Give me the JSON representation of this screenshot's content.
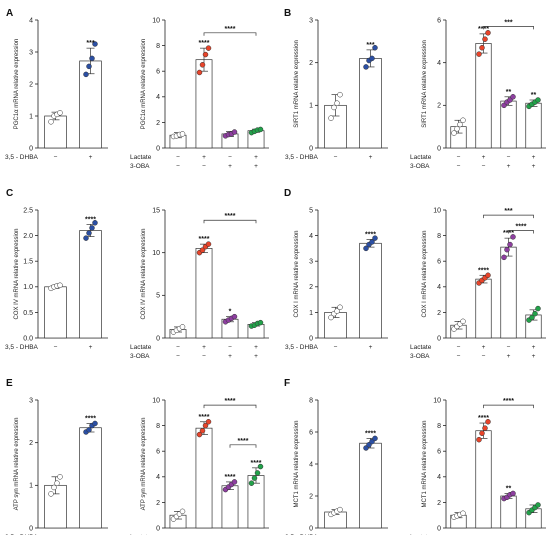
{
  "colors": {
    "control": "#ffffff",
    "dhba": "#2b4fa3",
    "lactate": "#e8442a",
    "oba": "#8e3fa0",
    "combo": "#22a24a"
  },
  "chart_data": [
    {
      "panel": "A",
      "type": "scatter-bar",
      "ylabel": "PGC1α mRNA relative expression",
      "ylim": [
        0,
        4
      ],
      "ticks": [
        "0",
        "1",
        "2",
        "3",
        "4"
      ],
      "cond_rows": [
        {
          "label": "3,5 - DHBA",
          "marks": [
            "−",
            "+"
          ]
        }
      ],
      "groups": [
        {
          "color": "control",
          "mean": 1.0,
          "sd": 0.12,
          "points": [
            0.82,
            1.0,
            1.05,
            1.1
          ]
        },
        {
          "color": "dhba",
          "mean": 2.72,
          "sd": 0.4,
          "points": [
            2.3,
            2.55,
            2.8,
            3.25
          ],
          "sig": "***"
        }
      ],
      "brackets": []
    },
    {
      "panel": "A",
      "type": "scatter-bar",
      "ylabel": "PGC1α mRNA relative expression",
      "ylim": [
        0,
        10
      ],
      "ticks": [
        "0",
        "2",
        "4",
        "6",
        "8",
        "10"
      ],
      "cond_rows": [
        {
          "label": "Lactate",
          "marks": [
            "−",
            "+",
            "−",
            "+"
          ]
        },
        {
          "label": "3-OBA",
          "marks": [
            "−",
            "−",
            "+",
            "+"
          ]
        }
      ],
      "groups": [
        {
          "color": "control",
          "mean": 1.0,
          "sd": 0.2,
          "points": [
            0.9,
            0.95,
            1.05,
            1.1
          ]
        },
        {
          "color": "lactate",
          "mean": 6.9,
          "sd": 0.9,
          "points": [
            5.9,
            6.5,
            7.3,
            7.8
          ],
          "sig": "****"
        },
        {
          "color": "oba",
          "mean": 1.1,
          "sd": 0.2,
          "points": [
            0.95,
            1.05,
            1.1,
            1.25
          ]
        },
        {
          "color": "combo",
          "mean": 1.35,
          "sd": 0.12,
          "points": [
            1.2,
            1.3,
            1.4,
            1.45
          ]
        }
      ],
      "brackets": [
        {
          "from": 1,
          "to": 3,
          "y": 9.0,
          "label": "****"
        }
      ]
    },
    {
      "panel": "B",
      "type": "scatter-bar",
      "ylabel": "SIRT1 mRNA relative expression",
      "ylim": [
        0,
        3
      ],
      "ticks": [
        "0",
        "1",
        "2",
        "3"
      ],
      "cond_rows": [
        {
          "label": "3,5 - DHBA",
          "marks": [
            "−",
            "+"
          ]
        }
      ],
      "groups": [
        {
          "color": "control",
          "mean": 1.0,
          "sd": 0.25,
          "points": [
            0.7,
            0.95,
            1.05,
            1.25
          ]
        },
        {
          "color": "dhba",
          "mean": 2.1,
          "sd": 0.2,
          "points": [
            1.9,
            2.05,
            2.1,
            2.35
          ],
          "sig": "***"
        }
      ],
      "brackets": []
    },
    {
      "panel": "B",
      "type": "scatter-bar",
      "ylabel": "SIRT1 mRNA relative expression",
      "ylim": [
        0,
        6
      ],
      "ticks": [
        "0",
        "2",
        "4",
        "6"
      ],
      "cond_rows": [
        {
          "label": "Lactate",
          "marks": [
            "−",
            "+",
            "−",
            "+"
          ]
        },
        {
          "label": "3-OBA",
          "marks": [
            "−",
            "−",
            "+",
            "+"
          ]
        }
      ],
      "groups": [
        {
          "color": "control",
          "mean": 1.0,
          "sd": 0.3,
          "points": [
            0.7,
            0.9,
            1.1,
            1.3
          ]
        },
        {
          "color": "lactate",
          "mean": 4.9,
          "sd": 0.45,
          "points": [
            4.4,
            4.7,
            5.1,
            5.4
          ],
          "sig": "****"
        },
        {
          "color": "oba",
          "mean": 2.2,
          "sd": 0.2,
          "points": [
            2.0,
            2.15,
            2.25,
            2.4
          ],
          "sig": "**"
        },
        {
          "color": "combo",
          "mean": 2.1,
          "sd": 0.15,
          "points": [
            1.95,
            2.05,
            2.15,
            2.25
          ],
          "sig": "**"
        }
      ],
      "brackets": [
        {
          "from": 1,
          "to": 3,
          "y": 5.7,
          "label": "***"
        }
      ]
    },
    {
      "panel": "C",
      "type": "scatter-bar",
      "ylabel": "COX IV mRNA relative expression",
      "ylim": [
        0,
        2.5
      ],
      "ticks": [
        "0.0",
        "0.5",
        "1.0",
        "1.5",
        "2.0",
        "2.5"
      ],
      "cond_rows": [
        {
          "label": "3,5 - DHBA",
          "marks": [
            "−",
            "+"
          ]
        }
      ],
      "groups": [
        {
          "color": "control",
          "mean": 1.0,
          "sd": 0.03,
          "points": [
            0.97,
            1.0,
            1.02,
            1.03
          ]
        },
        {
          "color": "dhba",
          "mean": 2.1,
          "sd": 0.12,
          "points": [
            1.95,
            2.05,
            2.15,
            2.25
          ],
          "sig": "****"
        }
      ],
      "brackets": []
    },
    {
      "panel": "C",
      "type": "scatter-bar",
      "ylabel": "COX IV mRNA relative expression",
      "ylim": [
        0,
        15
      ],
      "ticks": [
        "0",
        "5",
        "10",
        "15"
      ],
      "cond_rows": [
        {
          "label": "Lactate",
          "marks": [
            "−",
            "+",
            "−",
            "+"
          ]
        },
        {
          "label": "3-OBA",
          "marks": [
            "−",
            "−",
            "+",
            "+"
          ]
        }
      ],
      "groups": [
        {
          "color": "control",
          "mean": 1.0,
          "sd": 0.3,
          "points": [
            0.7,
            0.9,
            1.1,
            1.3
          ]
        },
        {
          "color": "lactate",
          "mean": 10.5,
          "sd": 0.5,
          "points": [
            10.0,
            10.3,
            10.7,
            11.0
          ],
          "sig": "****"
        },
        {
          "color": "oba",
          "mean": 2.2,
          "sd": 0.3,
          "points": [
            1.9,
            2.1,
            2.3,
            2.5
          ],
          "sig": "*"
        },
        {
          "color": "combo",
          "mean": 1.6,
          "sd": 0.2,
          "points": [
            1.4,
            1.5,
            1.7,
            1.8
          ]
        }
      ],
      "brackets": [
        {
          "from": 1,
          "to": 3,
          "y": 13.8,
          "label": "****"
        }
      ]
    },
    {
      "panel": "D",
      "type": "scatter-bar",
      "ylabel": "COX I mRNA relative expression",
      "ylim": [
        0,
        5
      ],
      "ticks": [
        "0",
        "1",
        "2",
        "3",
        "4",
        "5"
      ],
      "cond_rows": [
        {
          "label": "3,5 - DHBA",
          "marks": [
            "−",
            "+"
          ]
        }
      ],
      "groups": [
        {
          "color": "control",
          "mean": 1.0,
          "sd": 0.2,
          "points": [
            0.8,
            0.95,
            1.05,
            1.2
          ]
        },
        {
          "color": "dhba",
          "mean": 3.7,
          "sd": 0.15,
          "points": [
            3.5,
            3.65,
            3.75,
            3.9
          ],
          "sig": "****"
        }
      ],
      "brackets": []
    },
    {
      "panel": "D",
      "type": "scatter-bar",
      "ylabel": "COX I mRNA relative expression",
      "ylim": [
        0,
        10
      ],
      "ticks": [
        "0",
        "2",
        "4",
        "6",
        "8",
        "10"
      ],
      "cond_rows": [
        {
          "label": "Lactate",
          "marks": [
            "−",
            "+",
            "−",
            "+"
          ]
        },
        {
          "label": "3-OBA",
          "marks": [
            "−",
            "−",
            "+",
            "+"
          ]
        }
      ],
      "groups": [
        {
          "color": "control",
          "mean": 1.0,
          "sd": 0.3,
          "points": [
            0.7,
            0.9,
            1.1,
            1.3
          ]
        },
        {
          "color": "lactate",
          "mean": 4.6,
          "sd": 0.3,
          "points": [
            4.3,
            4.5,
            4.7,
            4.9
          ],
          "sig": "****"
        },
        {
          "color": "oba",
          "mean": 7.1,
          "sd": 0.7,
          "points": [
            6.3,
            6.9,
            7.3,
            7.9
          ],
          "sig": "****"
        },
        {
          "color": "combo",
          "mean": 1.8,
          "sd": 0.4,
          "points": [
            1.4,
            1.6,
            1.9,
            2.3
          ]
        }
      ],
      "brackets": [
        {
          "from": 1,
          "to": 3,
          "y": 9.6,
          "label": "***"
        },
        {
          "from": 2,
          "to": 3,
          "y": 8.4,
          "label": "****"
        }
      ]
    },
    {
      "panel": "E",
      "type": "scatter-bar",
      "ylabel": "ATP syn mRNA relative expression",
      "ylim": [
        0,
        3
      ],
      "ticks": [
        "0",
        "1",
        "2",
        "3"
      ],
      "cond_rows": [
        {
          "label": "3,5 - DHBA",
          "marks": [
            "−",
            "+"
          ]
        }
      ],
      "groups": [
        {
          "color": "control",
          "mean": 1.0,
          "sd": 0.2,
          "points": [
            0.8,
            0.95,
            1.05,
            1.2
          ]
        },
        {
          "color": "dhba",
          "mean": 2.35,
          "sd": 0.1,
          "points": [
            2.25,
            2.3,
            2.4,
            2.45
          ],
          "sig": "****"
        }
      ],
      "brackets": []
    },
    {
      "panel": "E",
      "type": "scatter-bar",
      "ylabel": "ATP syn mRNA relative expression",
      "ylim": [
        0,
        10
      ],
      "ticks": [
        "0",
        "2",
        "4",
        "6",
        "8",
        "10"
      ],
      "cond_rows": [
        {
          "label": "Lactate",
          "marks": [
            "−",
            "+",
            "−",
            "+"
          ]
        },
        {
          "label": "3-OBA",
          "marks": [
            "−",
            "−",
            "+",
            "+"
          ]
        }
      ],
      "groups": [
        {
          "color": "control",
          "mean": 1.0,
          "sd": 0.3,
          "points": [
            0.7,
            0.9,
            1.1,
            1.3
          ]
        },
        {
          "color": "lactate",
          "mean": 7.8,
          "sd": 0.5,
          "points": [
            7.3,
            7.6,
            8.0,
            8.3
          ],
          "sig": "****"
        },
        {
          "color": "oba",
          "mean": 3.3,
          "sd": 0.3,
          "points": [
            3.0,
            3.2,
            3.4,
            3.6
          ],
          "sig": "****"
        },
        {
          "color": "combo",
          "mean": 4.1,
          "sd": 0.6,
          "points": [
            3.5,
            3.9,
            4.3,
            4.8
          ],
          "sig": "****"
        }
      ],
      "brackets": [
        {
          "from": 1,
          "to": 3,
          "y": 9.6,
          "label": "****"
        },
        {
          "from": 2,
          "to": 3,
          "y": 6.5,
          "label": "****"
        }
      ]
    },
    {
      "panel": "F",
      "type": "scatter-bar",
      "ylabel": "MCT1 mRNA relative expression",
      "ylim": [
        0,
        8
      ],
      "ticks": [
        "0",
        "2",
        "4",
        "6",
        "8"
      ],
      "cond_rows": [
        {
          "label": "3,5 - DHBA",
          "marks": [
            "−",
            "+"
          ]
        }
      ],
      "groups": [
        {
          "color": "control",
          "mean": 1.0,
          "sd": 0.15,
          "points": [
            0.85,
            0.95,
            1.05,
            1.15
          ]
        },
        {
          "color": "dhba",
          "mean": 5.3,
          "sd": 0.3,
          "points": [
            5.0,
            5.2,
            5.4,
            5.6
          ],
          "sig": "****"
        }
      ],
      "brackets": []
    },
    {
      "panel": "F",
      "type": "scatter-bar",
      "ylabel": "MCT1 mRNA relative expression",
      "ylim": [
        0,
        10
      ],
      "ticks": [
        "0",
        "2",
        "4",
        "6",
        "8",
        "10"
      ],
      "cond_rows": [
        {
          "label": "Lactate",
          "marks": [
            "−",
            "+",
            "−",
            "+"
          ]
        },
        {
          "label": "3-OBA",
          "marks": [
            "−",
            "−",
            "+",
            "+"
          ]
        }
      ],
      "groups": [
        {
          "color": "control",
          "mean": 1.0,
          "sd": 0.2,
          "points": [
            0.85,
            0.95,
            1.05,
            1.15
          ]
        },
        {
          "color": "lactate",
          "mean": 7.6,
          "sd": 0.6,
          "points": [
            6.9,
            7.4,
            7.8,
            8.3
          ],
          "sig": "****"
        },
        {
          "color": "oba",
          "mean": 2.5,
          "sd": 0.2,
          "points": [
            2.3,
            2.4,
            2.6,
            2.7
          ],
          "sig": "**"
        },
        {
          "color": "combo",
          "mean": 1.5,
          "sd": 0.3,
          "points": [
            1.2,
            1.4,
            1.6,
            1.8
          ]
        }
      ],
      "brackets": [
        {
          "from": 1,
          "to": 3,
          "y": 9.6,
          "label": "****"
        }
      ]
    }
  ]
}
